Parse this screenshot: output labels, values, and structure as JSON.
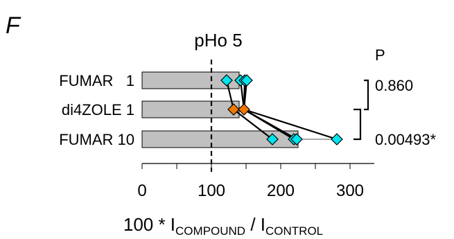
{
  "panel_label": "F",
  "chart_data": {
    "type": "bar",
    "title": "pHo 5",
    "xlabel": {
      "prefix": "100 * I",
      "sub1": "COMPOUND",
      "mid": " / I",
      "sub2": "CONTROL"
    },
    "xlim": [
      0,
      320
    ],
    "xticks": [
      0,
      100,
      200,
      300
    ],
    "reference_line": 100,
    "categories": [
      "FUMAR   1",
      "di4ZOLE 1",
      "FUMAR 10"
    ],
    "values": [
      140,
      140,
      225
    ],
    "points": [
      {
        "category": 0,
        "x": [
          122,
          142,
          148,
          151
        ],
        "color": "#00e5ee"
      },
      {
        "category": 1,
        "x": [
          132,
          147
        ],
        "color": "#f07800"
      },
      {
        "category": 2,
        "x": [
          188,
          219,
          223,
          281
        ],
        "color": "#00e5ee"
      }
    ],
    "error_bars": [
      {
        "category": 2,
        "low": 225,
        "high": 281
      }
    ],
    "pairs": [
      {
        "from_category": 0,
        "from_x": 122,
        "to_category": 1,
        "to_x": 132
      },
      {
        "from_category": 0,
        "from_x": 142,
        "to_category": 1,
        "to_x": 147
      },
      {
        "from_category": 0,
        "from_x": 148,
        "to_category": 1,
        "to_x": 147
      },
      {
        "from_category": 0,
        "from_x": 151,
        "to_category": 1,
        "to_x": 147
      },
      {
        "from_category": 1,
        "from_x": 132,
        "to_category": 2,
        "to_x": 188
      },
      {
        "from_category": 1,
        "from_x": 147,
        "to_category": 2,
        "to_x": 219
      },
      {
        "from_category": 1,
        "from_x": 147,
        "to_category": 2,
        "to_x": 223
      },
      {
        "from_category": 1,
        "from_x": 147,
        "to_category": 2,
        "to_x": 281
      }
    ],
    "stats": {
      "header": "P",
      "comparisons": [
        {
          "between": [
            0,
            1
          ],
          "p": "0.860"
        },
        {
          "between": [
            1,
            2
          ],
          "p": "0.00493*"
        }
      ]
    },
    "colors": {
      "bar": "#c0c0c0",
      "title": "#999999",
      "line": "#000000"
    }
  }
}
